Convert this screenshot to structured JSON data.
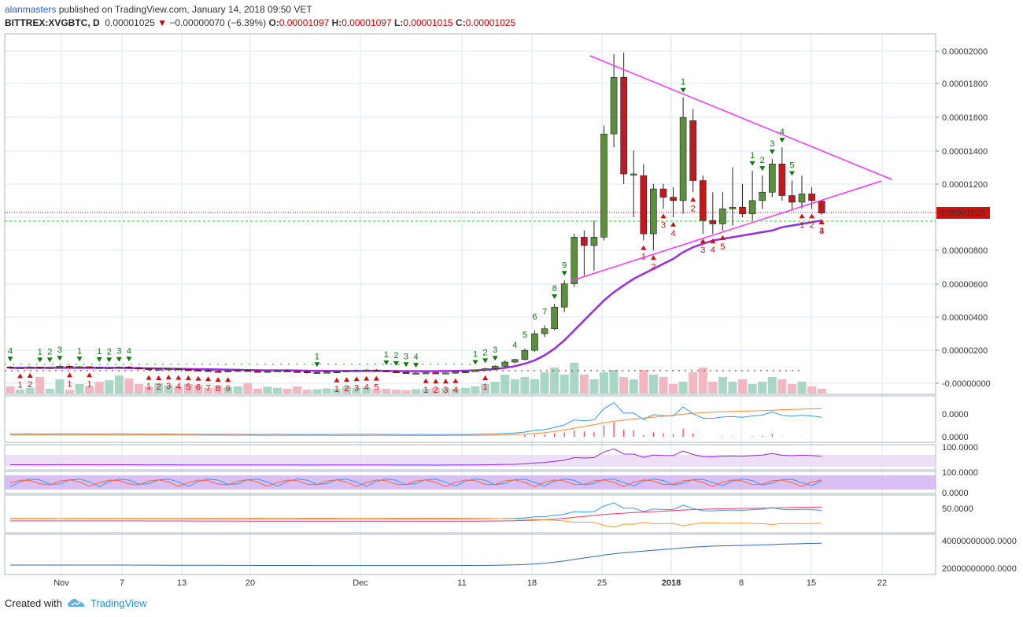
{
  "header": {
    "user": "alanmasters",
    "published": "published on TradingView.com, January 14, 2018 09:50 VET",
    "symbol": "BITTREX:XVGBTC, D",
    "price": "0.00001025",
    "change": "−0.00000070 (−6.39%)",
    "o_label": "O:",
    "o_value": "0.00001097",
    "h_label": "H:",
    "h_value": "0.00001097",
    "l_label": "L:",
    "l_value": "0.00001015",
    "c_label": "C:",
    "c_value": "0.00001025"
  },
  "footer": {
    "created": "Created with",
    "brand": "TradingView"
  },
  "colors": {
    "up": "#5c8f3c",
    "down": "#c4171f",
    "triangle": "#ff33ff",
    "ma": "#9b2be0",
    "grid": "#dbe7f5",
    "volUp": "#a8d7c6",
    "volDown": "#f2b8c2"
  },
  "chart_data": {
    "type": "candlestick",
    "x_labels": [
      "Nov",
      "7",
      "13",
      "20",
      "Dec",
      "11",
      "18",
      "25",
      "2018",
      "8",
      "15",
      "22"
    ],
    "y_ticks": [
      "0.00002000",
      "0.00001800",
      "0.00001600",
      "0.00001400",
      "0.00001200",
      "0.00000800",
      "0.00000600",
      "0.00000400",
      "0.00000200",
      "-0.00000000"
    ],
    "last_price_label": "0.00001025",
    "ohlc": [
      [
        1.0,
        1.05,
        0.9,
        0.95
      ],
      [
        0.95,
        1.0,
        0.9,
        0.97
      ],
      [
        0.97,
        1.05,
        0.92,
        1.0
      ],
      [
        1.0,
        1.0,
        0.9,
        0.92
      ],
      [
        0.92,
        1.0,
        0.88,
        0.98
      ],
      [
        0.98,
        1.1,
        0.95,
        1.05
      ],
      [
        1.05,
        1.1,
        0.95,
        0.97
      ],
      [
        0.97,
        1.05,
        0.9,
        1.02
      ],
      [
        1.02,
        1.05,
        0.95,
        0.98
      ],
      [
        0.98,
        1.02,
        0.9,
        0.93
      ],
      [
        0.93,
        1.0,
        0.88,
        0.97
      ],
      [
        0.97,
        1.03,
        0.92,
        1.0
      ],
      [
        1.0,
        1.05,
        0.92,
        0.95
      ],
      [
        0.95,
        1.0,
        0.85,
        0.9
      ],
      [
        0.9,
        0.95,
        0.8,
        0.85
      ],
      [
        0.85,
        0.92,
        0.78,
        0.88
      ],
      [
        0.88,
        0.95,
        0.82,
        0.9
      ],
      [
        0.9,
        0.95,
        0.8,
        0.85
      ],
      [
        0.85,
        0.9,
        0.78,
        0.82
      ],
      [
        0.82,
        0.88,
        0.75,
        0.8
      ],
      [
        0.8,
        0.85,
        0.72,
        0.75
      ],
      [
        0.75,
        0.8,
        0.68,
        0.72
      ],
      [
        0.72,
        0.8,
        0.68,
        0.78
      ],
      [
        0.78,
        0.85,
        0.72,
        0.8
      ],
      [
        0.8,
        0.85,
        0.72,
        0.75
      ],
      [
        0.75,
        0.8,
        0.68,
        0.7
      ],
      [
        0.7,
        0.78,
        0.65,
        0.75
      ],
      [
        0.75,
        0.82,
        0.7,
        0.78
      ],
      [
        0.78,
        0.85,
        0.72,
        0.74
      ],
      [
        0.74,
        0.8,
        0.68,
        0.72
      ],
      [
        0.72,
        0.78,
        0.62,
        0.65
      ],
      [
        0.65,
        0.72,
        0.6,
        0.68
      ],
      [
        0.68,
        0.75,
        0.62,
        0.7
      ],
      [
        0.7,
        0.78,
        0.65,
        0.72
      ],
      [
        0.72,
        0.8,
        0.68,
        0.78
      ],
      [
        0.78,
        0.85,
        0.72,
        0.8
      ],
      [
        0.8,
        0.88,
        0.75,
        0.82
      ],
      [
        0.82,
        0.88,
        0.75,
        0.78
      ],
      [
        0.78,
        0.82,
        0.7,
        0.72
      ],
      [
        0.72,
        0.78,
        0.65,
        0.68
      ],
      [
        0.68,
        0.72,
        0.6,
        0.62
      ],
      [
        0.62,
        0.68,
        0.58,
        0.64
      ],
      [
        0.64,
        0.7,
        0.6,
        0.66
      ],
      [
        0.66,
        0.72,
        0.58,
        0.6
      ],
      [
        0.6,
        0.68,
        0.58,
        0.65
      ],
      [
        0.65,
        0.72,
        0.6,
        0.7
      ],
      [
        0.7,
        0.78,
        0.65,
        0.72
      ],
      [
        0.72,
        0.85,
        0.7,
        0.82
      ],
      [
        0.82,
        0.95,
        0.78,
        0.9
      ],
      [
        0.9,
        1.1,
        0.85,
        1.05
      ],
      [
        1.05,
        1.4,
        1.0,
        1.3
      ],
      [
        1.3,
        1.5,
        1.2,
        1.45
      ],
      [
        1.45,
        2.1,
        1.4,
        2.0
      ],
      [
        2.0,
        3.2,
        1.9,
        3.0
      ],
      [
        3.0,
        3.5,
        2.8,
        3.3
      ],
      [
        3.3,
        4.8,
        3.2,
        4.6
      ],
      [
        4.6,
        6.2,
        4.3,
        6.0
      ],
      [
        6.0,
        9.0,
        5.8,
        8.8
      ],
      [
        8.8,
        9.2,
        6.5,
        8.3
      ],
      [
        8.3,
        9.8,
        6.8,
        8.8
      ],
      [
        8.8,
        15.5,
        8.6,
        15.0
      ],
      [
        15.0,
        19.8,
        14.2,
        18.4
      ],
      [
        18.4,
        19.9,
        12.0,
        12.6
      ],
      [
        12.6,
        14.0,
        10.0,
        12.6
      ],
      [
        12.5,
        13.2,
        8.6,
        9.0
      ],
      [
        9.0,
        12.0,
        8.0,
        11.7
      ],
      [
        11.7,
        12.0,
        10.5,
        11.2
      ],
      [
        11.2,
        11.8,
        10.0,
        11.0
      ],
      [
        11.0,
        17.2,
        10.2,
        16.0
      ],
      [
        15.8,
        16.5,
        11.5,
        12.2
      ],
      [
        12.2,
        12.5,
        9.0,
        9.8
      ],
      [
        9.8,
        11.5,
        9.0,
        9.6
      ],
      [
        9.6,
        11.5,
        9.2,
        10.5
      ],
      [
        10.5,
        13.0,
        9.5,
        10.6
      ],
      [
        10.6,
        12.0,
        10.0,
        10.2
      ],
      [
        10.2,
        12.8,
        9.8,
        11.0
      ],
      [
        11.0,
        12.5,
        10.5,
        11.5
      ],
      [
        11.5,
        13.5,
        11.2,
        13.2
      ],
      [
        13.2,
        14.2,
        11.0,
        11.3
      ],
      [
        11.3,
        12.2,
        10.4,
        10.9
      ],
      [
        10.9,
        12.5,
        10.5,
        11.4
      ],
      [
        11.4,
        11.8,
        10.5,
        11.0
      ],
      [
        10.97,
        10.97,
        10.15,
        10.25
      ]
    ],
    "ma": [
      0.95,
      0.95,
      0.95,
      0.95,
      0.95,
      0.95,
      0.95,
      0.95,
      0.96,
      0.95,
      0.95,
      0.95,
      0.94,
      0.93,
      0.92,
      0.91,
      0.9,
      0.89,
      0.88,
      0.87,
      0.86,
      0.85,
      0.84,
      0.83,
      0.82,
      0.81,
      0.8,
      0.8,
      0.8,
      0.79,
      0.78,
      0.77,
      0.77,
      0.76,
      0.76,
      0.76,
      0.77,
      0.77,
      0.77,
      0.76,
      0.75,
      0.75,
      0.75,
      0.75,
      0.76,
      0.77,
      0.78,
      0.8,
      0.83,
      0.88,
      0.95,
      1.05,
      1.2,
      1.4,
      1.7,
      2.1,
      2.6,
      3.2,
      3.8,
      4.4,
      5.0,
      5.5,
      5.9,
      6.3,
      6.6,
      6.9,
      7.2,
      7.5,
      7.9,
      8.2,
      8.4,
      8.6,
      8.7,
      8.8,
      8.9,
      9.0,
      9.1,
      9.2,
      9.4,
      9.5,
      9.6,
      9.7,
      9.8
    ],
    "volume": [
      1.5,
      0.8,
      1.2,
      3.5,
      1.0,
      3.0,
      0.8,
      2.0,
      1.5,
      2.5,
      2.8,
      3.8,
      3.2,
      2.0,
      1.5,
      2.2,
      1.8,
      1.5,
      2.0,
      1.8,
      1.2,
      1.6,
      1.3,
      1.5,
      2.2,
      1.0,
      1.4,
      1.2,
      1.0,
      1.5,
      0.8,
      0.9,
      1.1,
      1.0,
      1.5,
      1.2,
      1.3,
      0.9,
      1.0,
      0.8,
      0.7,
      0.9,
      1.0,
      1.2,
      1.1,
      1.0,
      1.2,
      1.5,
      2.0,
      2.5,
      4.0,
      3.0,
      3.5,
      3.0,
      4.5,
      5.5,
      4.0,
      6.5,
      4.0,
      3.0,
      4.5,
      5.0,
      3.5,
      3.0,
      5.0,
      4.0,
      3.5,
      2.0,
      2.5,
      4.5,
      5.5,
      2.5,
      3.5,
      2.5,
      3.0,
      2.0,
      2.5,
      3.5,
      3.0,
      2.0,
      2.5,
      1.5,
      1.0
    ],
    "annotations": {
      "sell_setup": [
        [
          0,
          "4"
        ],
        [
          3,
          "1"
        ],
        [
          4,
          "2"
        ],
        [
          5,
          "3"
        ],
        [
          7,
          "1"
        ],
        [
          9,
          "1"
        ],
        [
          10,
          "2"
        ],
        [
          11,
          "3"
        ],
        [
          12,
          "4"
        ],
        [
          31,
          "1"
        ],
        [
          38,
          "1"
        ],
        [
          39,
          "2"
        ],
        [
          40,
          "3"
        ],
        [
          41,
          "4"
        ],
        [
          47,
          "1"
        ],
        [
          48,
          "2"
        ],
        [
          49,
          "3"
        ],
        [
          55,
          "8"
        ],
        [
          56,
          "9"
        ],
        [
          68,
          "1"
        ],
        [
          75,
          "1"
        ],
        [
          76,
          "2"
        ],
        [
          77,
          "3"
        ],
        [
          78,
          "4"
        ],
        [
          79,
          "5"
        ]
      ],
      "buy_setup": [
        [
          1,
          "1"
        ],
        [
          2,
          "2"
        ],
        [
          6,
          "1"
        ],
        [
          8,
          "1"
        ],
        [
          14,
          "1"
        ],
        [
          15,
          "2"
        ],
        [
          16,
          "3"
        ],
        [
          17,
          "4"
        ],
        [
          18,
          "5"
        ],
        [
          19,
          "6"
        ],
        [
          20,
          "7"
        ],
        [
          21,
          "8"
        ],
        [
          22,
          "9"
        ],
        [
          33,
          "1"
        ],
        [
          34,
          "2"
        ],
        [
          35,
          "3"
        ],
        [
          36,
          "4"
        ],
        [
          37,
          "5"
        ],
        [
          42,
          "1"
        ],
        [
          43,
          "2"
        ],
        [
          44,
          "3"
        ],
        [
          45,
          "4"
        ],
        [
          48,
          "1"
        ],
        [
          64,
          "1"
        ],
        [
          65,
          "2"
        ],
        [
          66,
          "3"
        ],
        [
          67,
          "4"
        ],
        [
          69,
          "2"
        ],
        [
          70,
          "3"
        ],
        [
          71,
          "4"
        ],
        [
          72,
          "5"
        ],
        [
          80,
          "1"
        ],
        [
          81,
          "2"
        ],
        [
          82,
          "3"
        ],
        [
          82,
          "4"
        ]
      ],
      "countdown_up": [
        [
          51,
          "4"
        ],
        [
          52,
          "5"
        ],
        [
          53,
          "6"
        ],
        [
          54,
          "7"
        ]
      ]
    }
  }
}
